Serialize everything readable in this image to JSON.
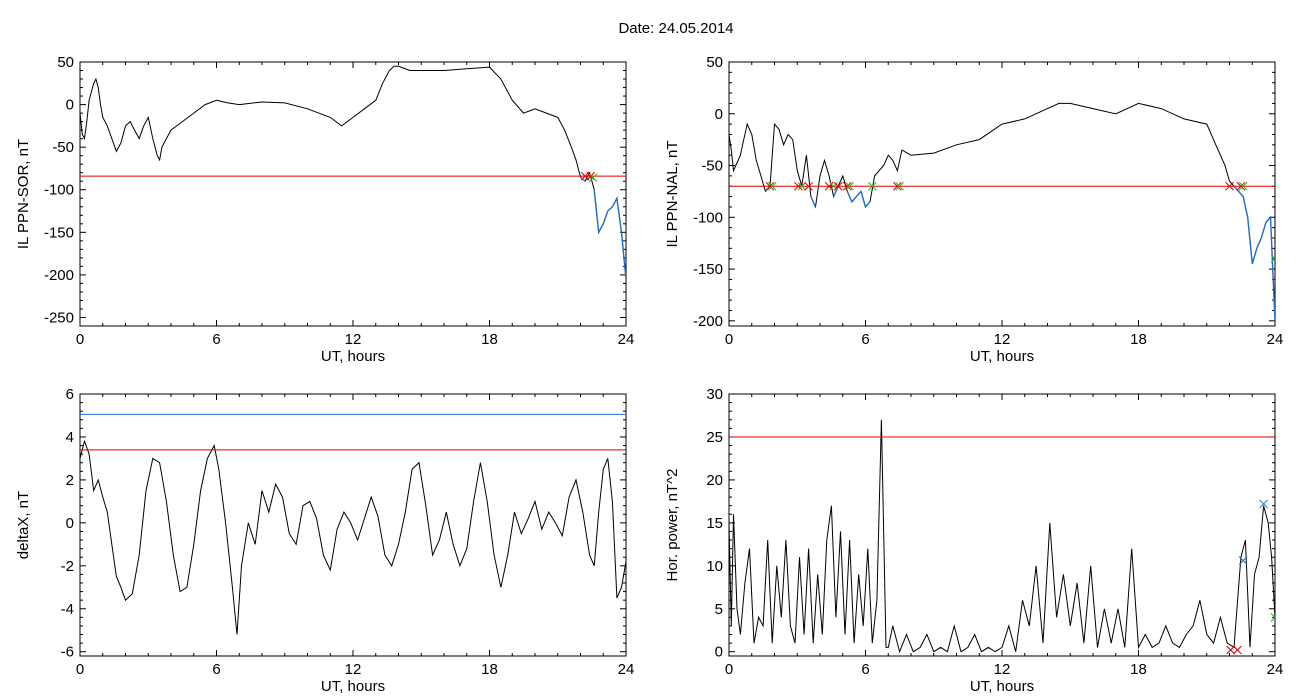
{
  "figure_title": "Date:  24.05.2014",
  "colors": {
    "trace": "#000000",
    "threshold": "#dd0000",
    "threshold2": "#1f6fd1",
    "segment": "#1f6fd1",
    "cross_red": "#dd0000",
    "cross_green": "#22bb22"
  },
  "chart_data": [
    {
      "id": "sor",
      "type": "line",
      "title": "",
      "ylabel": "IL PPN-SOR, nT",
      "xlabel": "UT, hours",
      "xlim": [
        0,
        24
      ],
      "ylim": [
        -260,
        50
      ],
      "xticks": [
        0,
        6,
        12,
        18,
        24
      ],
      "yticks": [
        50,
        0,
        -50,
        -100,
        -150,
        -200,
        -250
      ],
      "thresholds": [
        {
          "value": -84,
          "color": "red"
        }
      ],
      "below_threshold_color": "blue",
      "markers": [
        {
          "x": 22.2,
          "y": -84,
          "color": "red"
        },
        {
          "x": 22.45,
          "y": -84,
          "color": "red"
        },
        {
          "x": 22.55,
          "y": -86,
          "color": "green"
        }
      ],
      "series": [
        {
          "x": [
            0,
            0.1,
            0.2,
            0.3,
            0.4,
            0.5,
            0.6,
            0.7,
            0.8,
            0.9,
            1.0,
            1.2,
            1.4,
            1.6,
            1.8,
            2.0,
            2.2,
            2.4,
            2.6,
            2.8,
            3.0,
            3.2,
            3.4,
            3.5,
            3.6,
            3.8,
            4.0,
            4.5,
            5.0,
            5.5,
            6.0,
            6.5,
            7.0,
            8.0,
            9.0,
            10.0,
            11.0,
            11.5,
            12.0,
            12.5,
            13.0,
            13.3,
            13.6,
            13.8,
            14.0,
            14.5,
            15.0,
            16.0,
            17.0,
            18.0,
            18.5,
            19.0,
            19.5,
            20.0,
            20.5,
            21.0,
            21.3,
            21.6,
            21.8,
            22.0,
            22.2,
            22.4,
            22.6,
            22.8,
            23.0,
            23.2,
            23.4,
            23.6,
            23.8,
            24.0
          ],
          "y": [
            -10,
            -35,
            -40,
            -20,
            5,
            15,
            25,
            30,
            20,
            0,
            -15,
            -25,
            -40,
            -55,
            -45,
            -25,
            -20,
            -30,
            -40,
            -25,
            -15,
            -40,
            -60,
            -65,
            -50,
            -40,
            -30,
            -20,
            -10,
            0,
            5,
            2,
            0,
            3,
            2,
            -5,
            -15,
            -25,
            -15,
            -5,
            5,
            25,
            40,
            45,
            45,
            40,
            40,
            40,
            42,
            44,
            30,
            5,
            -10,
            -5,
            -10,
            -15,
            -30,
            -50,
            -65,
            -85,
            -90,
            -80,
            -100,
            -150,
            -140,
            -125,
            -120,
            -110,
            -150,
            -205
          ]
        }
      ]
    },
    {
      "id": "nal",
      "type": "line",
      "title": "",
      "ylabel": "IL PPN-NAL, nT",
      "xlabel": "UT, hours",
      "xlim": [
        0,
        24
      ],
      "ylim": [
        -205,
        50
      ],
      "xticks": [
        0,
        6,
        12,
        18,
        24
      ],
      "yticks": [
        50,
        0,
        -50,
        -100,
        -150,
        -200
      ],
      "thresholds": [
        {
          "value": -70,
          "color": "red"
        }
      ],
      "below_threshold_color": "blue",
      "markers": [
        {
          "x": 1.8,
          "y": -70,
          "color": "red"
        },
        {
          "x": 1.9,
          "y": -70,
          "color": "green"
        },
        {
          "x": 3.05,
          "y": -70,
          "color": "red"
        },
        {
          "x": 3.2,
          "y": -70,
          "color": "green"
        },
        {
          "x": 3.5,
          "y": -70,
          "color": "red"
        },
        {
          "x": 4.4,
          "y": -70,
          "color": "red"
        },
        {
          "x": 4.6,
          "y": -70,
          "color": "green"
        },
        {
          "x": 4.8,
          "y": -70,
          "color": "red"
        },
        {
          "x": 5.2,
          "y": -70,
          "color": "red"
        },
        {
          "x": 5.3,
          "y": -70,
          "color": "green"
        },
        {
          "x": 6.3,
          "y": -70,
          "color": "green"
        },
        {
          "x": 7.4,
          "y": -70,
          "color": "red"
        },
        {
          "x": 7.5,
          "y": -70,
          "color": "green"
        },
        {
          "x": 22.0,
          "y": -70,
          "color": "red"
        },
        {
          "x": 22.5,
          "y": -70,
          "color": "red"
        },
        {
          "x": 22.6,
          "y": -70,
          "color": "green"
        },
        {
          "x": 24.0,
          "y": -140,
          "color": "green"
        }
      ],
      "series": [
        {
          "x": [
            0,
            0.1,
            0.2,
            0.3,
            0.4,
            0.5,
            0.6,
            0.8,
            1.0,
            1.2,
            1.4,
            1.6,
            1.8,
            2.0,
            2.2,
            2.4,
            2.6,
            2.8,
            3.0,
            3.2,
            3.4,
            3.6,
            3.8,
            4.0,
            4.2,
            4.4,
            4.6,
            4.8,
            5.0,
            5.2,
            5.4,
            5.6,
            5.8,
            6.0,
            6.2,
            6.4,
            6.6,
            6.8,
            7.0,
            7.2,
            7.4,
            7.6,
            8.0,
            9.0,
            10.0,
            11.0,
            12.0,
            13.0,
            14.0,
            14.5,
            15.0,
            16.0,
            17.0,
            18.0,
            19.0,
            20.0,
            21.0,
            21.4,
            21.8,
            22.0,
            22.2,
            22.4,
            22.6,
            22.8,
            23.0,
            23.2,
            23.4,
            23.6,
            23.8,
            24.0
          ],
          "y": [
            -20,
            -35,
            -55,
            -50,
            -45,
            -40,
            -30,
            -10,
            -20,
            -45,
            -60,
            -75,
            -70,
            -10,
            -15,
            -30,
            -20,
            -25,
            -55,
            -70,
            -40,
            -80,
            -90,
            -60,
            -45,
            -60,
            -80,
            -70,
            -60,
            -75,
            -85,
            -80,
            -75,
            -90,
            -85,
            -60,
            -55,
            -50,
            -40,
            -45,
            -55,
            -35,
            -40,
            -38,
            -30,
            -25,
            -10,
            -5,
            5,
            10,
            10,
            5,
            0,
            10,
            5,
            -5,
            -10,
            -30,
            -50,
            -65,
            -70,
            -75,
            -80,
            -100,
            -145,
            -130,
            -120,
            -105,
            -100,
            -200
          ]
        }
      ]
    },
    {
      "id": "deltax",
      "type": "line",
      "title": "",
      "ylabel": "deltaX, nT",
      "xlabel": "UT, hours",
      "xlim": [
        0,
        24
      ],
      "ylim": [
        -6.2,
        6.0
      ],
      "xticks": [
        0,
        6,
        12,
        18,
        24
      ],
      "yticks": [
        6,
        4,
        2,
        0,
        -2,
        -4,
        -6
      ],
      "thresholds": [
        {
          "value": 5.05,
          "color": "blue"
        },
        {
          "value": 3.4,
          "color": "red"
        }
      ],
      "markers": [],
      "series": [
        {
          "x": [
            0,
            0.2,
            0.4,
            0.6,
            0.8,
            1.0,
            1.2,
            1.4,
            1.6,
            1.8,
            2.0,
            2.3,
            2.6,
            2.9,
            3.2,
            3.5,
            3.8,
            4.1,
            4.4,
            4.7,
            5.0,
            5.3,
            5.6,
            5.9,
            6.1,
            6.4,
            6.7,
            6.9,
            7.1,
            7.4,
            7.7,
            8.0,
            8.3,
            8.6,
            8.9,
            9.2,
            9.5,
            9.8,
            10.1,
            10.4,
            10.7,
            11.0,
            11.3,
            11.6,
            11.9,
            12.2,
            12.5,
            12.8,
            13.1,
            13.4,
            13.7,
            14.0,
            14.3,
            14.6,
            14.9,
            15.2,
            15.5,
            15.8,
            16.1,
            16.4,
            16.7,
            17.0,
            17.3,
            17.6,
            17.9,
            18.2,
            18.5,
            18.8,
            19.1,
            19.4,
            19.7,
            20.0,
            20.3,
            20.6,
            20.9,
            21.2,
            21.5,
            21.8,
            22.1,
            22.4,
            22.6,
            22.8,
            23.0,
            23.2,
            23.4,
            23.6,
            23.8,
            24.0
          ],
          "y": [
            3.0,
            3.8,
            3.2,
            1.5,
            2.0,
            1.2,
            0.5,
            -1.0,
            -2.5,
            -3.0,
            -3.6,
            -3.3,
            -1.5,
            1.5,
            3.0,
            2.8,
            1.0,
            -1.5,
            -3.2,
            -3.0,
            -1.0,
            1.5,
            3.0,
            3.6,
            2.5,
            0.0,
            -3.0,
            -5.2,
            -2.0,
            0.0,
            -1.0,
            1.5,
            0.5,
            1.8,
            1.2,
            -0.5,
            -1.0,
            0.8,
            1.0,
            0.2,
            -1.5,
            -2.2,
            -0.3,
            0.5,
            0.0,
            -0.8,
            0.2,
            1.2,
            0.3,
            -1.5,
            -2.0,
            -1.0,
            0.5,
            2.5,
            2.8,
            0.8,
            -1.5,
            -0.8,
            0.5,
            -1.0,
            -2.0,
            -1.2,
            1.0,
            2.8,
            1.0,
            -1.5,
            -3.0,
            -1.5,
            0.5,
            -0.5,
            0.2,
            1.0,
            -0.3,
            0.5,
            0.0,
            -0.6,
            1.2,
            2.0,
            0.5,
            -1.5,
            -2.0,
            0.5,
            2.5,
            3.0,
            1.0,
            -3.5,
            -3.0,
            -1.8
          ]
        }
      ]
    },
    {
      "id": "power",
      "type": "line",
      "title": "",
      "ylabel": "Hor. power, nT^2",
      "xlabel": "UT, hours",
      "xlim": [
        0,
        24
      ],
      "ylim": [
        -0.5,
        30
      ],
      "xticks": [
        0,
        6,
        12,
        18,
        24
      ],
      "yticks": [
        30,
        25,
        20,
        15,
        10,
        5,
        0
      ],
      "thresholds": [
        {
          "value": 25,
          "color": "red"
        }
      ],
      "markers": [
        {
          "x": 22.6,
          "y": 10.6,
          "color": "blue"
        },
        {
          "x": 23.5,
          "y": 17.2,
          "color": "blue"
        },
        {
          "x": 22.05,
          "y": 0.2,
          "color": "red"
        },
        {
          "x": 22.35,
          "y": 0.2,
          "color": "red"
        },
        {
          "x": 24.0,
          "y": 4.0,
          "color": "green"
        }
      ],
      "series": [
        {
          "x": [
            0,
            0.1,
            0.2,
            0.35,
            0.5,
            0.7,
            0.9,
            1.1,
            1.3,
            1.5,
            1.7,
            1.9,
            2.1,
            2.3,
            2.5,
            2.7,
            2.9,
            3.1,
            3.3,
            3.5,
            3.7,
            3.9,
            4.1,
            4.3,
            4.5,
            4.7,
            4.9,
            5.1,
            5.3,
            5.5,
            5.7,
            5.9,
            6.1,
            6.3,
            6.5,
            6.7,
            6.9,
            7.0,
            7.2,
            7.5,
            7.8,
            8.1,
            8.4,
            8.7,
            9.0,
            9.3,
            9.6,
            9.9,
            10.2,
            10.5,
            10.8,
            11.1,
            11.4,
            11.7,
            12.0,
            12.3,
            12.6,
            12.9,
            13.2,
            13.5,
            13.8,
            14.1,
            14.4,
            14.7,
            15.0,
            15.3,
            15.6,
            15.9,
            16.2,
            16.5,
            16.8,
            17.1,
            17.4,
            17.7,
            18.0,
            18.3,
            18.6,
            18.9,
            19.2,
            19.5,
            19.8,
            20.1,
            20.4,
            20.7,
            21.0,
            21.3,
            21.6,
            21.9,
            22.2,
            22.5,
            22.7,
            22.9,
            23.1,
            23.3,
            23.5,
            23.7,
            23.85,
            24.0
          ],
          "y": [
            15,
            3,
            16,
            5,
            2,
            8,
            12,
            1,
            4,
            3,
            13,
            1,
            10,
            4,
            13,
            3,
            1,
            11,
            2,
            12,
            1,
            9,
            2,
            13,
            17,
            4,
            14,
            2,
            13,
            1,
            9,
            3,
            12,
            1,
            6,
            27,
            0.5,
            0.5,
            3,
            0,
            2,
            0,
            0.5,
            2,
            0,
            0.5,
            0,
            3,
            0,
            0.5,
            2,
            0,
            0.5,
            0,
            0.5,
            3,
            0,
            6,
            3,
            10,
            1,
            15,
            4,
            9,
            3,
            8,
            1,
            10,
            0.5,
            5,
            1,
            5,
            0.5,
            12,
            0.5,
            2,
            0.5,
            1,
            3,
            1,
            0.5,
            2,
            3,
            6,
            2,
            1,
            4,
            1,
            0.5,
            11,
            13,
            0.5,
            9,
            11,
            17,
            15,
            11,
            4
          ]
        }
      ]
    }
  ]
}
